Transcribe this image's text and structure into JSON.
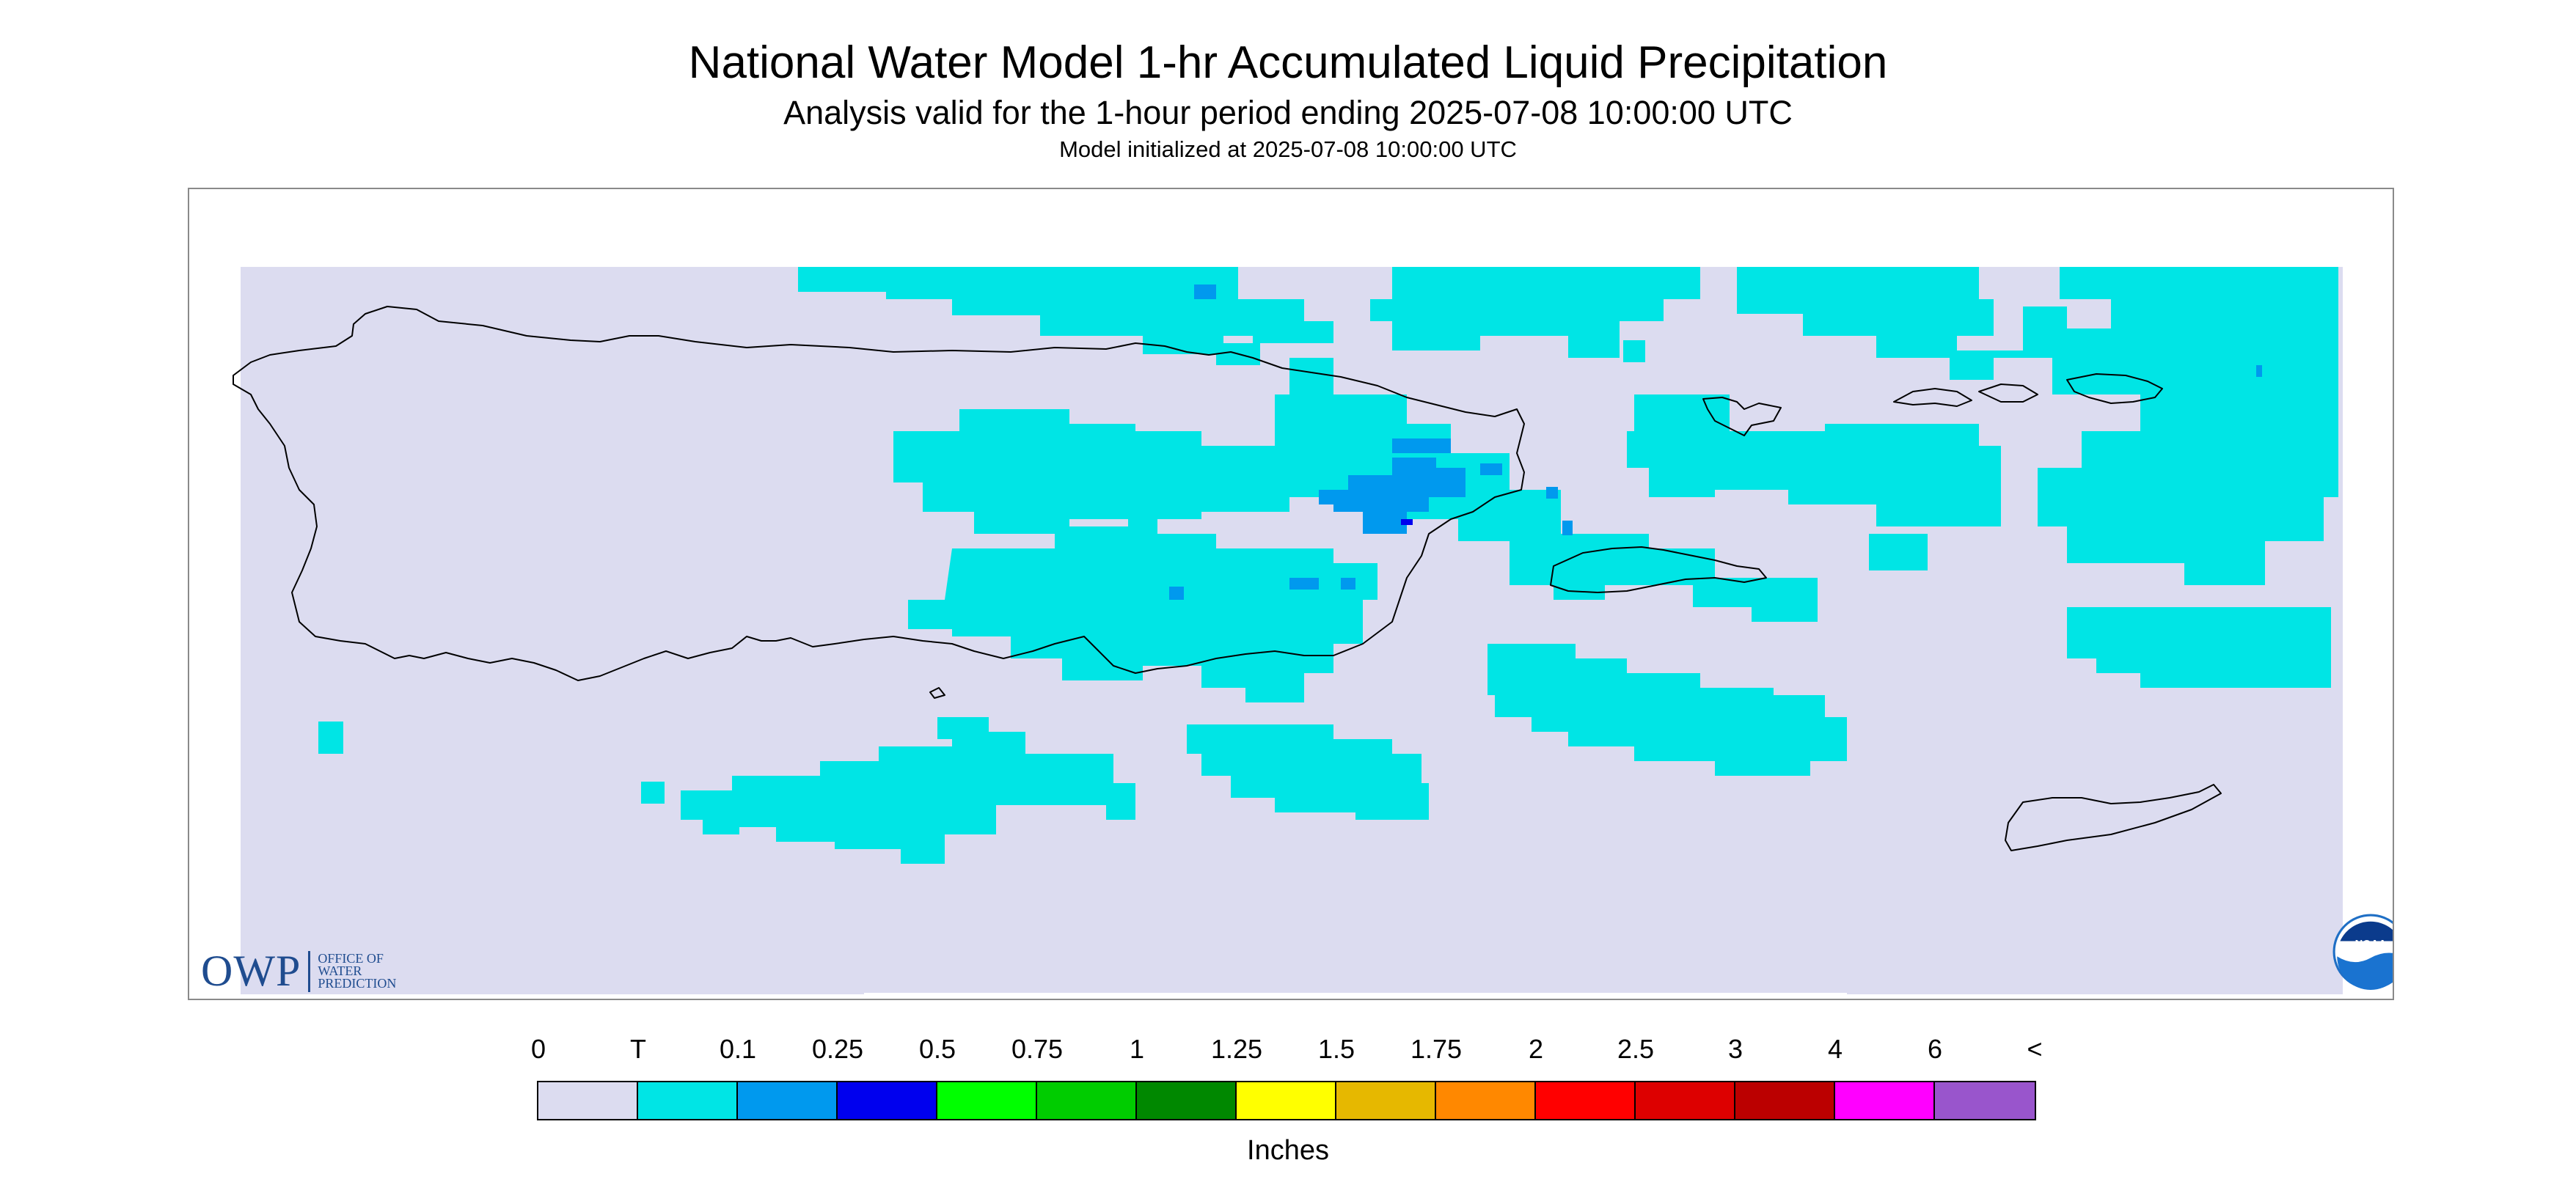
{
  "header": {
    "title": "National Water Model 1-hr Accumulated Liquid Precipitation",
    "subtitle": "Analysis valid for the 1-hour period ending 2025-07-08 10:00:00 UTC",
    "init_line": "Model initialized at 2025-07-08 10:00:00 UTC"
  },
  "logos": {
    "owp_abbrev": "OWP",
    "owp_line1": "OFFICE OF",
    "owp_line2": "WATER",
    "owp_line3": "PREDICTION",
    "noaa_text": "NOAA"
  },
  "colors": {
    "no_data_background": "#dcdcf0",
    "trace": "#00e5e5",
    "coastline": "#000000"
  },
  "legend": {
    "labels": [
      "0",
      "T",
      "0.1",
      "0.25",
      "0.5",
      "0.75",
      "1",
      "1.25",
      "1.5",
      "1.75",
      "2",
      "2.5",
      "3",
      "4",
      "6",
      "<"
    ],
    "colors": [
      "#dcdcf0",
      "#00e5e5",
      "#0099ee",
      "#0000ee",
      "#00ff00",
      "#00cc00",
      "#008800",
      "#ffff00",
      "#e6b800",
      "#ff8800",
      "#ff0000",
      "#dd0000",
      "#bb0000",
      "#ff00ff",
      "#9955cc"
    ],
    "units": "Inches"
  }
}
